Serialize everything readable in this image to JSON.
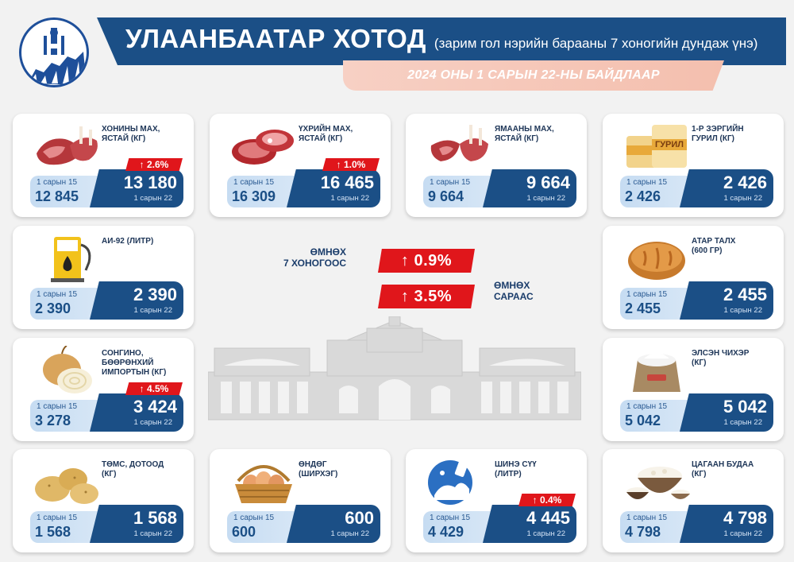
{
  "header": {
    "title": "УЛААНБААТАР ХОТОД",
    "subtitle": "(зарим гол нэрийн барааны 7 хоногийн дундаж үнэ)",
    "date_line": "2024 ОНЫ 1 САРЫН 22-НЫ БАЙДЛААР"
  },
  "labels": {
    "old_date": "1 сарын 15",
    "new_date": "1 сарын 22"
  },
  "summary": {
    "week_label_1": "ӨМНӨХ",
    "week_label_2": "7 ХОНОГООС",
    "week_change": "↑ 0.9%",
    "month_label_1": "ӨМНӨХ",
    "month_label_2": "САРААС",
    "month_change": "↑ 3.5%"
  },
  "items": [
    {
      "name_1": "ХОНИНЫ МАХ,",
      "name_2": "ЯСТАЙ (КГ)",
      "name_3": "",
      "old": "12 845",
      "new": "13 180",
      "change": "↑ 2.6%",
      "icon": "mutton-icon"
    },
    {
      "name_1": "ҮХРИЙН МАХ,",
      "name_2": "ЯСТАЙ (КГ)",
      "name_3": "",
      "old": "16 309",
      "new": "16 465",
      "change": "↑ 1.0%",
      "icon": "beef-icon"
    },
    {
      "name_1": "ЯМААНЫ МАХ,",
      "name_2": "ЯСТАЙ (КГ)",
      "name_3": "",
      "old": "9 664",
      "new": "9 664",
      "change": "",
      "icon": "goat-meat-icon"
    },
    {
      "name_1": "1-Р ЗЭРГИЙН",
      "name_2": "ГУРИЛ (КГ)",
      "name_3": "",
      "old": "2 426",
      "new": "2 426",
      "change": "",
      "icon": "flour-icon"
    },
    {
      "name_1": "АИ-92 (ЛИТР)",
      "name_2": "",
      "name_3": "",
      "old": "2 390",
      "new": "2 390",
      "change": "",
      "icon": "fuel-pump-icon"
    },
    {
      "name_1": "АТАР ТАЛХ",
      "name_2": "(600 ГР)",
      "name_3": "",
      "old": "2 455",
      "new": "2 455",
      "change": "",
      "icon": "bread-icon"
    },
    {
      "name_1": "СОНГИНО,",
      "name_2": "БӨӨРӨНХИЙ",
      "name_3": "ИМПОРТЫН (КГ)",
      "old": "3 278",
      "new": "3 424",
      "change": "↑ 4.5%",
      "icon": "onion-icon"
    },
    {
      "name_1": "ЭЛСЭН ЧИХЭР",
      "name_2": "(КГ)",
      "name_3": "",
      "old": "5 042",
      "new": "5 042",
      "change": "",
      "icon": "sugar-sack-icon"
    },
    {
      "name_1": "ТӨМС, ДОТООД",
      "name_2": "(КГ)",
      "name_3": "",
      "old": "1 568",
      "new": "1 568",
      "change": "",
      "icon": "potato-icon"
    },
    {
      "name_1": "ӨНДӨГ",
      "name_2": "(ШИРХЭГ)",
      "name_3": "",
      "old": "600",
      "new": "600",
      "change": "",
      "icon": "eggs-basket-icon"
    },
    {
      "name_1": "ШИНЭ СҮҮ",
      "name_2": "(ЛИТР)",
      "name_3": "",
      "old": "4 429",
      "new": "4 445",
      "change": "↑ 0.4%",
      "icon": "milk-icon"
    },
    {
      "name_1": "ЦАГААН БУДАА",
      "name_2": "(КГ)",
      "name_3": "",
      "old": "4 798",
      "new": "4 798",
      "change": "",
      "icon": "rice-bowl-icon"
    }
  ],
  "flour_bag_text": "ГУРИЛ",
  "colors": {
    "primary": "#1b4f86",
    "light": "#c6dcf2",
    "accent": "#e0161b",
    "date_bar": "#f4bfae"
  }
}
